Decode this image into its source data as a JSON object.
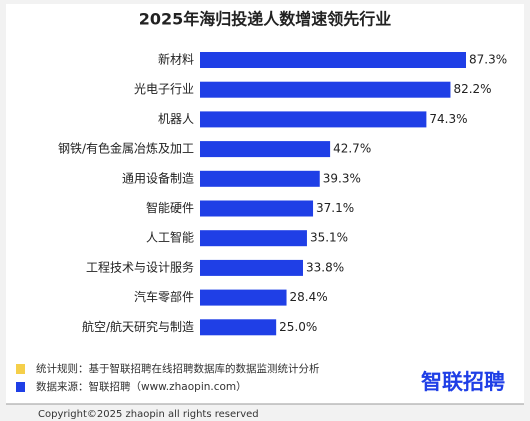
{
  "chart_data": {
    "type": "hbar",
    "title": "2025年海归投递人数增速领先行业",
    "categories": [
      "新材料",
      "光电子行业",
      "机器人",
      "钢铁/有色金属冶炼及加工",
      "通用设备制造",
      "智能硬件",
      "人工智能",
      "工程技术与设计服务",
      "汽车零部件",
      "航空/航天研究与制造"
    ],
    "values": [
      87.3,
      82.2,
      74.3,
      42.7,
      39.3,
      37.1,
      35.1,
      33.8,
      28.4,
      25.0
    ],
    "value_labels": [
      "87.3%",
      "82.2%",
      "74.3%",
      "42.7%",
      "39.3%",
      "37.1%",
      "35.1%",
      "33.8%",
      "28.4%",
      "25.0%"
    ],
    "color": "#1f3fe6"
  },
  "footer": {
    "notes": [
      {
        "text": "统计规则：基于智联招聘在线招聘数据库的数据监测统计分析",
        "color": "#f5cf4a"
      },
      {
        "text": "数据来源：智联招聘（www.zhaopin.com）",
        "color": "#1f3fe6"
      }
    ],
    "logo": "智联招聘",
    "copyright": "Copyright©2025 zhaopin all rights reserved"
  }
}
